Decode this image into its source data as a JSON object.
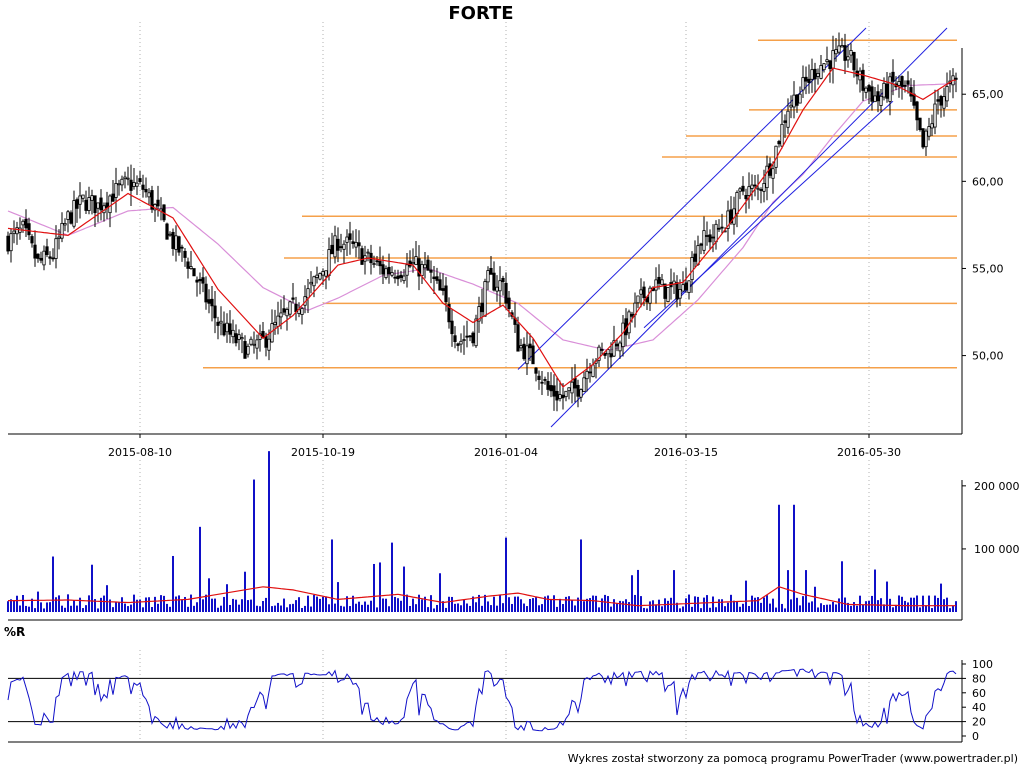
{
  "chart_data": [
    {
      "type": "candlestick",
      "title": "FORTE",
      "x_tick_labels": [
        "2015-08-10",
        "2015-10-19",
        "2016-01-04",
        "2016-03-15",
        "2016-05-30"
      ],
      "x_range": [
        "2015-06-01",
        "2016-06-27"
      ],
      "ylim": [
        45.5,
        68.8
      ],
      "y_tick_labels": [
        "50,00",
        "55,00",
        "60,00",
        "65,00"
      ],
      "y_ticks": [
        50,
        55,
        60,
        65
      ],
      "grid": "dotted vertical",
      "colors": {
        "candle": "#000000",
        "ma_short": "#e01010",
        "ma_long": "#d98fd8",
        "support": "#f5a04a",
        "channel": "#2020e0"
      },
      "close": [
        [
          0,
          56.6
        ],
        [
          5,
          57.2
        ],
        [
          10,
          55.3
        ],
        [
          15,
          55.8
        ],
        [
          20,
          57.9
        ],
        [
          25,
          58.9
        ],
        [
          30,
          58.6
        ],
        [
          35,
          59.3
        ],
        [
          40,
          59.9
        ],
        [
          45,
          59.6
        ],
        [
          50,
          58.2
        ],
        [
          55,
          56.5
        ],
        [
          60,
          55.4
        ],
        [
          65,
          53.6
        ],
        [
          70,
          51.9
        ],
        [
          75,
          51.0
        ],
        [
          80,
          50.3
        ],
        [
          85,
          50.8
        ],
        [
          90,
          51.9
        ],
        [
          95,
          52.7
        ],
        [
          100,
          53.6
        ],
        [
          105,
          55.0
        ],
        [
          110,
          56.6
        ],
        [
          115,
          56.2
        ],
        [
          120,
          55.5
        ],
        [
          125,
          54.9
        ],
        [
          130,
          54.9
        ],
        [
          135,
          55.2
        ],
        [
          140,
          54.8
        ],
        [
          145,
          53.3
        ],
        [
          150,
          50.8
        ],
        [
          155,
          51.3
        ],
        [
          160,
          54.3
        ],
        [
          165,
          54.1
        ],
        [
          170,
          50.7
        ],
        [
          175,
          49.8
        ],
        [
          180,
          48.0
        ],
        [
          185,
          47.6
        ],
        [
          190,
          48.2
        ],
        [
          195,
          49.9
        ],
        [
          200,
          50.2
        ],
        [
          205,
          51.3
        ],
        [
          210,
          53.0
        ],
        [
          215,
          54.1
        ],
        [
          220,
          53.7
        ],
        [
          225,
          53.8
        ],
        [
          230,
          56.5
        ],
        [
          235,
          56.9
        ],
        [
          240,
          57.8
        ],
        [
          245,
          59.5
        ],
        [
          250,
          59.5
        ],
        [
          255,
          61.3
        ],
        [
          260,
          64.3
        ],
        [
          265,
          65.4
        ],
        [
          270,
          66.6
        ],
        [
          275,
          67.1
        ],
        [
          280,
          67.3
        ],
        [
          285,
          65.5
        ],
        [
          290,
          64.7
        ],
        [
          295,
          65.6
        ],
        [
          300,
          65.2
        ],
        [
          305,
          61.9
        ],
        [
          310,
          64.6
        ],
        [
          315,
          65.6
        ]
      ],
      "ma_short": [
        [
          0,
          57.3
        ],
        [
          20,
          56.9
        ],
        [
          40,
          59.3
        ],
        [
          55,
          57.9
        ],
        [
          70,
          53.8
        ],
        [
          85,
          51.0
        ],
        [
          95,
          52.3
        ],
        [
          110,
          55.2
        ],
        [
          120,
          55.6
        ],
        [
          135,
          55.2
        ],
        [
          145,
          53.0
        ],
        [
          155,
          51.9
        ],
        [
          165,
          52.9
        ],
        [
          175,
          51.0
        ],
        [
          185,
          48.2
        ],
        [
          195,
          49.5
        ],
        [
          205,
          51.3
        ],
        [
          215,
          53.9
        ],
        [
          225,
          54.2
        ],
        [
          235,
          56.3
        ],
        [
          245,
          58.6
        ],
        [
          255,
          61.0
        ],
        [
          265,
          64.1
        ],
        [
          275,
          66.5
        ],
        [
          285,
          66.1
        ],
        [
          295,
          65.6
        ],
        [
          305,
          64.7
        ],
        [
          315,
          65.8
        ]
      ],
      "ma_long": [
        [
          0,
          58.3
        ],
        [
          20,
          56.9
        ],
        [
          40,
          58.3
        ],
        [
          55,
          58.5
        ],
        [
          70,
          56.4
        ],
        [
          85,
          53.9
        ],
        [
          100,
          52.6
        ],
        [
          110,
          53.3
        ],
        [
          125,
          54.6
        ],
        [
          140,
          55.0
        ],
        [
          155,
          54.1
        ],
        [
          170,
          53.0
        ],
        [
          185,
          50.9
        ],
        [
          200,
          50.3
        ],
        [
          215,
          50.9
        ],
        [
          230,
          53.2
        ],
        [
          245,
          56.2
        ],
        [
          255,
          58.8
        ],
        [
          265,
          60.4
        ],
        [
          275,
          62.6
        ],
        [
          285,
          64.6
        ],
        [
          300,
          65.5
        ],
        [
          315,
          65.6
        ]
      ],
      "support_lines": [
        {
          "level": 49.3,
          "from": 65,
          "to": 315
        },
        {
          "level": 53.0,
          "from": 105,
          "to": 315
        },
        {
          "level": 55.6,
          "from": 92,
          "to": 315
        },
        {
          "level": 58.0,
          "from": 98,
          "to": 315
        },
        {
          "level": 61.4,
          "from": 218,
          "to": 315
        },
        {
          "level": 62.6,
          "from": 226,
          "to": 315
        },
        {
          "level": 64.1,
          "from": 247,
          "to": 315
        },
        {
          "level": 68.1,
          "from": 250,
          "to": 315
        }
      ],
      "channel_lines": [
        {
          "from": [
            170,
            49.2
          ],
          "to": [
            286,
            68.8
          ]
        },
        {
          "from": [
            181,
            45.9
          ],
          "to": [
            313,
            68.8
          ]
        },
        {
          "from": [
            212,
            51.6
          ],
          "to": [
            295,
            64.6
          ]
        }
      ]
    },
    {
      "type": "bar",
      "series_name": "volume",
      "y_tick_labels": [
        "100 000",
        "200 000"
      ],
      "y_ticks": [
        100000,
        200000
      ],
      "ylim": [
        0,
        260000
      ],
      "spikes": [
        [
          64,
          135000
        ],
        [
          82,
          210000
        ],
        [
          87,
          255000
        ],
        [
          108,
          115000
        ],
        [
          128,
          110000
        ],
        [
          166,
          118000
        ],
        [
          191,
          115000
        ],
        [
          257,
          170000
        ],
        [
          262,
          170000
        ],
        [
          311,
          45000
        ]
      ],
      "baseline_volume": 14000,
      "volume_ma": [
        [
          0,
          18000
        ],
        [
          20,
          19000
        ],
        [
          40,
          15000
        ],
        [
          60,
          20000
        ],
        [
          70,
          28000
        ],
        [
          85,
          40000
        ],
        [
          95,
          35000
        ],
        [
          110,
          20000
        ],
        [
          130,
          28000
        ],
        [
          145,
          15000
        ],
        [
          160,
          25000
        ],
        [
          170,
          30000
        ],
        [
          180,
          20000
        ],
        [
          195,
          18000
        ],
        [
          210,
          10000
        ],
        [
          230,
          14000
        ],
        [
          250,
          18000
        ],
        [
          257,
          40000
        ],
        [
          265,
          28000
        ],
        [
          280,
          12000
        ],
        [
          300,
          10000
        ],
        [
          315,
          10000
        ]
      ]
    },
    {
      "type": "line",
      "indicator_label": "%R",
      "y_tick_labels": [
        "0",
        "20",
        "40",
        "60",
        "80",
        "100"
      ],
      "y_ticks": [
        0,
        20,
        40,
        60,
        80,
        100
      ],
      "reference_lines": [
        20,
        80
      ],
      "ylim": [
        0,
        100
      ]
    }
  ],
  "footer": {
    "credit": "Wykres został stworzony za pomocą programu PowerTrader (www.powertrader.pl)"
  }
}
